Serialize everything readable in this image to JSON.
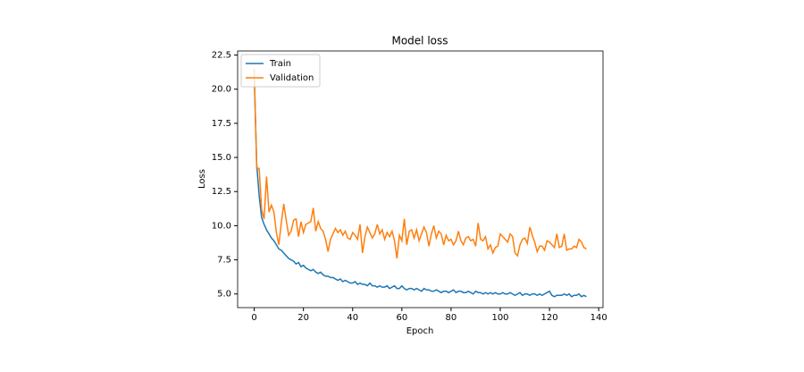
{
  "chart_data": {
    "type": "line",
    "title": "Model loss",
    "xlabel": "Epoch",
    "ylabel": "Loss",
    "x": [
      0,
      1,
      2,
      3,
      4,
      5,
      6,
      7,
      8,
      9,
      10,
      11,
      12,
      13,
      14,
      15,
      16,
      17,
      18,
      19,
      20,
      21,
      22,
      23,
      24,
      25,
      26,
      27,
      28,
      29,
      30,
      31,
      32,
      33,
      34,
      35,
      36,
      37,
      38,
      39,
      40,
      41,
      42,
      43,
      44,
      45,
      46,
      47,
      48,
      49,
      50,
      51,
      52,
      53,
      54,
      55,
      56,
      57,
      58,
      59,
      60,
      61,
      62,
      63,
      64,
      65,
      66,
      67,
      68,
      69,
      70,
      71,
      72,
      73,
      74,
      75,
      76,
      77,
      78,
      79,
      80,
      81,
      82,
      83,
      84,
      85,
      86,
      87,
      88,
      89,
      90,
      91,
      92,
      93,
      94,
      95,
      96,
      97,
      98,
      99,
      100,
      101,
      102,
      103,
      104,
      105,
      106,
      107,
      108,
      109,
      110,
      111,
      112,
      113,
      114,
      115,
      116,
      117,
      118,
      119,
      120,
      121,
      122,
      123,
      124,
      125,
      126,
      127,
      128,
      129,
      130,
      131,
      132,
      133,
      134,
      135
    ],
    "series": [
      {
        "name": "Train",
        "color": "#1f77b4",
        "values": [
          21.0,
          14.5,
          12.2,
          10.6,
          10.1,
          9.7,
          9.4,
          9.1,
          8.9,
          8.6,
          8.3,
          8.2,
          8.0,
          7.8,
          7.6,
          7.5,
          7.4,
          7.2,
          7.3,
          7.0,
          7.1,
          6.9,
          6.8,
          6.7,
          6.8,
          6.6,
          6.5,
          6.6,
          6.4,
          6.3,
          6.3,
          6.2,
          6.2,
          6.1,
          6.0,
          6.1,
          5.9,
          6.0,
          5.9,
          5.8,
          5.8,
          5.9,
          5.7,
          5.8,
          5.7,
          5.7,
          5.6,
          5.8,
          5.6,
          5.6,
          5.5,
          5.6,
          5.5,
          5.5,
          5.6,
          5.4,
          5.5,
          5.6,
          5.4,
          5.4,
          5.6,
          5.4,
          5.3,
          5.4,
          5.4,
          5.3,
          5.4,
          5.3,
          5.2,
          5.4,
          5.3,
          5.3,
          5.2,
          5.2,
          5.3,
          5.2,
          5.1,
          5.2,
          5.2,
          5.1,
          5.2,
          5.3,
          5.1,
          5.2,
          5.2,
          5.1,
          5.1,
          5.2,
          5.1,
          5.0,
          5.2,
          5.1,
          5.1,
          5.0,
          5.1,
          5.0,
          5.1,
          5.0,
          5.1,
          5.0,
          5.0,
          5.1,
          5.0,
          5.0,
          5.1,
          5.0,
          4.9,
          5.0,
          5.1,
          4.9,
          5.0,
          5.0,
          4.9,
          5.0,
          5.0,
          4.9,
          5.0,
          4.9,
          5.0,
          5.1,
          5.2,
          4.9,
          4.8,
          4.9,
          4.9,
          4.9,
          5.0,
          4.9,
          5.0,
          4.8,
          4.9,
          4.9,
          5.0,
          4.8,
          4.9,
          4.8
        ]
      },
      {
        "name": "Validation",
        "color": "#ff7f0e",
        "values": [
          21.5,
          14.2,
          14.2,
          11.2,
          10.5,
          13.6,
          11.0,
          11.5,
          11.0,
          9.5,
          8.6,
          10.2,
          11.6,
          10.4,
          9.3,
          9.6,
          10.4,
          10.5,
          9.2,
          10.3,
          9.5,
          10.1,
          10.2,
          10.3,
          11.3,
          9.6,
          10.3,
          9.8,
          9.6,
          9.0,
          8.1,
          9.0,
          9.4,
          9.8,
          9.5,
          9.7,
          9.3,
          9.6,
          9.1,
          9.0,
          9.5,
          9.3,
          9.0,
          10.1,
          8.0,
          9.2,
          9.9,
          9.5,
          9.1,
          9.4,
          10.1,
          9.4,
          9.7,
          9.0,
          9.5,
          9.2,
          9.6,
          8.9,
          7.6,
          9.3,
          8.9,
          10.5,
          8.6,
          9.6,
          9.7,
          9.1,
          9.7,
          8.9,
          9.4,
          9.9,
          9.5,
          8.5,
          9.4,
          10.0,
          9.1,
          9.6,
          9.4,
          8.6,
          9.3,
          8.9,
          9.0,
          8.6,
          8.9,
          9.6,
          8.9,
          8.6,
          9.1,
          9.2,
          8.9,
          9.0,
          8.5,
          10.2,
          9.0,
          8.9,
          9.2,
          8.3,
          8.6,
          8.0,
          8.4,
          8.5,
          9.4,
          9.2,
          9.0,
          8.8,
          9.4,
          9.2,
          8.0,
          7.8,
          8.6,
          9.0,
          9.1,
          8.7,
          9.9,
          9.3,
          8.8,
          8.1,
          8.5,
          8.5,
          8.2,
          8.9,
          8.8,
          8.6,
          8.4,
          9.4,
          8.4,
          8.5,
          9.4,
          8.2,
          8.3,
          8.3,
          8.5,
          8.4,
          9.0,
          8.8,
          8.4,
          8.3
        ]
      }
    ],
    "xlim": [
      -6.75,
      141.75
    ],
    "xticks": [
      0,
      20,
      40,
      60,
      80,
      100,
      120,
      140
    ],
    "ylim": [
      4.0,
      22.8
    ],
    "yticks": [
      {
        "value": 5,
        "label": "5.0"
      },
      {
        "value": 7.5,
        "label": "7.5"
      },
      {
        "value": 10,
        "label": "10.0"
      },
      {
        "value": 12.5,
        "label": "12.5"
      },
      {
        "value": 15,
        "label": "15.0"
      },
      {
        "value": 17.5,
        "label": "17.5"
      },
      {
        "value": 20,
        "label": "20.0"
      },
      {
        "value": 22.5,
        "label": "22.5"
      }
    ],
    "legend": "upper left",
    "grid": false
  }
}
